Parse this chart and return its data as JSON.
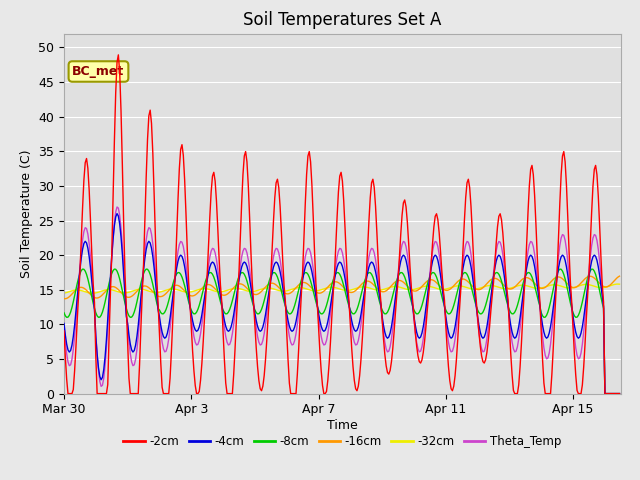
{
  "title": "Soil Temperatures Set A",
  "xlabel": "Time",
  "ylabel": "Soil Temperature (C)",
  "ylim": [
    0,
    52
  ],
  "yticks": [
    0,
    5,
    10,
    15,
    20,
    25,
    30,
    35,
    40,
    45,
    50
  ],
  "annotation_text": "BC_met",
  "fig_bg_color": "#e8e8e8",
  "plot_bg_color": "#e0e0e0",
  "series_colors": {
    "-2cm": "#ff0000",
    "-4cm": "#0000dd",
    "-8cm": "#00cc00",
    "-16cm": "#ff9900",
    "-32cm": "#eeee00",
    "Theta_Temp": "#cc44cc"
  },
  "legend_entries": [
    "-2cm",
    "-4cm",
    "-8cm",
    "-16cm",
    "-32cm",
    "Theta_Temp"
  ],
  "xtick_positions": [
    0,
    4,
    8,
    12,
    16
  ],
  "xtick_labels": [
    "Mar 30",
    "Apr 3",
    "Apr 7",
    "Apr 11",
    "Apr 15"
  ],
  "xlim": [
    0,
    17.5
  ]
}
